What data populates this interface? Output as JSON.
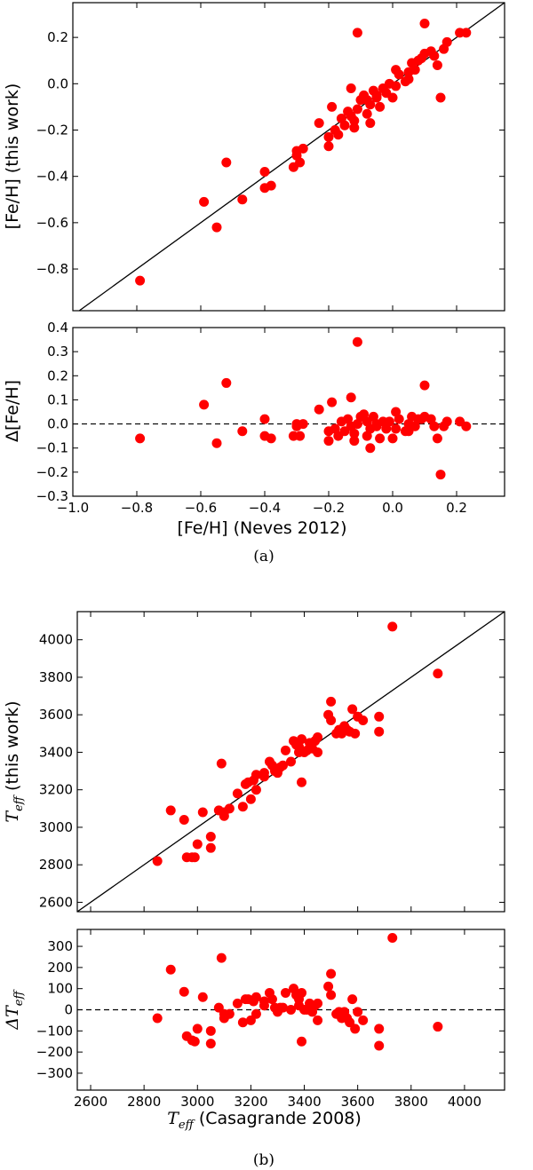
{
  "chart_data": [
    {
      "type": "scatter",
      "panel": "a-top",
      "xlim": [
        -1.0,
        0.35
      ],
      "ylim": [
        -0.98,
        0.35
      ],
      "yticks": [
        0.2,
        0.0,
        -0.2,
        -0.4,
        -0.6,
        -0.8
      ],
      "ytick_labels": [
        "0.2",
        "0.0",
        "−0.2",
        "−0.4",
        "−0.6",
        "−0.8"
      ],
      "ylabel": "[Fe/H] (this work)",
      "reference_line": "identity",
      "marker_color": "#ff0000",
      "x": [
        -0.79,
        -0.59,
        -0.55,
        -0.52,
        -0.47,
        -0.4,
        -0.4,
        -0.38,
        -0.31,
        -0.3,
        -0.3,
        -0.29,
        -0.28,
        -0.23,
        -0.2,
        -0.2,
        -0.19,
        -0.18,
        -0.17,
        -0.16,
        -0.15,
        -0.14,
        -0.13,
        -0.13,
        -0.12,
        -0.12,
        -0.11,
        -0.11,
        -0.1,
        -0.09,
        -0.08,
        -0.08,
        -0.07,
        -0.07,
        -0.06,
        -0.05,
        -0.05,
        -0.04,
        -0.03,
        -0.02,
        -0.01,
        0.0,
        0.01,
        0.01,
        0.02,
        0.04,
        0.05,
        0.05,
        0.06,
        0.07,
        0.08,
        0.09,
        0.1,
        0.1,
        0.12,
        0.13,
        0.14,
        0.15,
        0.16,
        0.17,
        0.21,
        0.23
      ],
      "y": [
        -0.85,
        -0.51,
        -0.62,
        -0.34,
        -0.5,
        -0.38,
        -0.45,
        -0.44,
        -0.36,
        -0.29,
        -0.31,
        -0.34,
        -0.28,
        -0.17,
        -0.23,
        -0.27,
        -0.1,
        -0.2,
        -0.22,
        -0.15,
        -0.18,
        -0.12,
        -0.02,
        -0.14,
        -0.16,
        -0.19,
        0.22,
        -0.11,
        -0.07,
        -0.05,
        -0.07,
        -0.13,
        -0.17,
        -0.09,
        -0.03,
        -0.05,
        -0.06,
        -0.1,
        -0.02,
        -0.04,
        0.0,
        -0.06,
        0.06,
        -0.01,
        0.04,
        0.01,
        0.02,
        0.05,
        0.09,
        0.06,
        0.1,
        0.11,
        0.26,
        0.13,
        0.14,
        0.12,
        0.08,
        -0.06,
        0.15,
        0.18,
        0.22,
        0.22
      ]
    },
    {
      "type": "scatter",
      "panel": "a-bottom",
      "xlim": [
        -1.0,
        0.35
      ],
      "ylim": [
        -0.3,
        0.4
      ],
      "xticks": [
        -1.0,
        -0.8,
        -0.6,
        -0.4,
        -0.2,
        0.0,
        0.2
      ],
      "xtick_labels": [
        "−1.0",
        "−0.8",
        "−0.6",
        "−0.4",
        "−0.2",
        "0.0",
        "0.2"
      ],
      "yticks": [
        0.4,
        0.3,
        0.2,
        0.1,
        0.0,
        -0.1,
        -0.2,
        -0.3
      ],
      "ytick_labels": [
        "0.4",
        "0.3",
        "0.2",
        "0.1",
        "0.0",
        "−0.1",
        "−0.2",
        "−0.3"
      ],
      "xlabel": "[Fe/H] (Neves 2012)",
      "ylabel": "Δ[Fe/H]",
      "reference_line": "zero",
      "marker_color": "#ff0000",
      "x": [
        -0.79,
        -0.59,
        -0.55,
        -0.52,
        -0.47,
        -0.4,
        -0.4,
        -0.38,
        -0.31,
        -0.3,
        -0.3,
        -0.29,
        -0.28,
        -0.23,
        -0.2,
        -0.2,
        -0.19,
        -0.18,
        -0.17,
        -0.16,
        -0.15,
        -0.14,
        -0.13,
        -0.13,
        -0.12,
        -0.12,
        -0.11,
        -0.11,
        -0.1,
        -0.09,
        -0.08,
        -0.08,
        -0.07,
        -0.07,
        -0.06,
        -0.05,
        -0.05,
        -0.04,
        -0.03,
        -0.02,
        -0.01,
        0.0,
        0.01,
        0.01,
        0.02,
        0.04,
        0.05,
        0.05,
        0.06,
        0.07,
        0.08,
        0.09,
        0.1,
        0.1,
        0.12,
        0.13,
        0.14,
        0.15,
        0.16,
        0.17,
        0.21,
        0.23
      ],
      "y": [
        -0.06,
        0.08,
        -0.08,
        0.17,
        -0.03,
        0.02,
        -0.05,
        -0.06,
        -0.05,
        0.0,
        -0.01,
        -0.05,
        0.0,
        0.06,
        -0.03,
        -0.07,
        0.09,
        -0.02,
        -0.05,
        0.01,
        -0.03,
        0.02,
        0.11,
        -0.01,
        -0.04,
        -0.07,
        0.34,
        0.0,
        0.03,
        0.04,
        0.01,
        -0.05,
        -0.1,
        -0.02,
        0.03,
        0.0,
        -0.01,
        -0.06,
        0.01,
        -0.02,
        0.01,
        -0.06,
        0.05,
        -0.02,
        0.02,
        -0.03,
        -0.03,
        0.0,
        0.03,
        -0.01,
        0.02,
        0.02,
        0.16,
        0.03,
        0.02,
        -0.01,
        -0.06,
        -0.21,
        -0.01,
        0.01,
        0.01,
        -0.01
      ]
    },
    {
      "type": "scatter",
      "panel": "b-top",
      "xlim": [
        2550,
        4150
      ],
      "ylim": [
        2550,
        4150
      ],
      "yticks": [
        4000,
        3800,
        3600,
        3400,
        3200,
        3000,
        2800,
        2600
      ],
      "ytick_labels": [
        "4000",
        "3800",
        "3600",
        "3400",
        "3200",
        "3000",
        "2800",
        "2600"
      ],
      "ylabel_main": "T",
      "ylabel_sub": "eff",
      "ylabel_rest": " (this work)",
      "reference_line": "identity",
      "marker_color": "#ff0000",
      "x": [
        2850,
        2900,
        2950,
        2960,
        2980,
        2990,
        3000,
        3020,
        3050,
        3050,
        3080,
        3090,
        3100,
        3100,
        3120,
        3150,
        3170,
        3180,
        3190,
        3200,
        3210,
        3220,
        3220,
        3250,
        3250,
        3270,
        3280,
        3290,
        3300,
        3310,
        3320,
        3330,
        3350,
        3360,
        3370,
        3380,
        3380,
        3390,
        3390,
        3400,
        3410,
        3420,
        3430,
        3440,
        3450,
        3450,
        3490,
        3500,
        3500,
        3520,
        3530,
        3540,
        3550,
        3560,
        3570,
        3580,
        3590,
        3600,
        3620,
        3680,
        3680,
        3730,
        3900
      ],
      "y": [
        2820,
        3090,
        3040,
        2840,
        2840,
        2840,
        2910,
        3080,
        2950,
        2890,
        3090,
        3340,
        3060,
        3080,
        3100,
        3180,
        3110,
        3230,
        3240,
        3150,
        3250,
        3200,
        3280,
        3290,
        3270,
        3350,
        3330,
        3300,
        3290,
        3320,
        3330,
        3410,
        3350,
        3460,
        3440,
        3400,
        3430,
        3470,
        3240,
        3400,
        3410,
        3450,
        3420,
        3460,
        3480,
        3400,
        3600,
        3670,
        3570,
        3500,
        3520,
        3500,
        3540,
        3520,
        3510,
        3630,
        3500,
        3590,
        3570,
        3590,
        3510,
        4070,
        3820
      ]
    },
    {
      "type": "scatter",
      "panel": "b-bottom",
      "xlim": [
        2550,
        4150
      ],
      "ylim": [
        -380,
        380
      ],
      "xticks": [
        2600,
        2800,
        3000,
        3200,
        3400,
        3600,
        3800,
        4000
      ],
      "xtick_labels": [
        "2600",
        "2800",
        "3000",
        "3200",
        "3400",
        "3600",
        "3800",
        "4000"
      ],
      "yticks": [
        300,
        200,
        100,
        0,
        -100,
        -200,
        -300
      ],
      "ytick_labels": [
        "300",
        "200",
        "100",
        "0",
        "−100",
        "−200",
        "−300"
      ],
      "xlabel_main": "T",
      "xlabel_sub": "eff",
      "xlabel_rest": " (Casagrande 2008)",
      "ylabel_main": "ΔT",
      "ylabel_sub": "eff",
      "reference_line": "zero",
      "marker_color": "#ff0000",
      "x": [
        2850,
        2900,
        2950,
        2960,
        2980,
        2990,
        3000,
        3020,
        3050,
        3050,
        3080,
        3090,
        3100,
        3100,
        3120,
        3150,
        3170,
        3180,
        3190,
        3200,
        3210,
        3220,
        3220,
        3250,
        3250,
        3270,
        3280,
        3290,
        3300,
        3310,
        3320,
        3330,
        3350,
        3360,
        3370,
        3380,
        3380,
        3390,
        3390,
        3400,
        3410,
        3420,
        3430,
        3440,
        3450,
        3450,
        3490,
        3500,
        3500,
        3520,
        3530,
        3540,
        3550,
        3560,
        3570,
        3580,
        3590,
        3600,
        3620,
        3680,
        3680,
        3730,
        3900
      ],
      "y": [
        -40,
        190,
        85,
        -125,
        -145,
        -150,
        -90,
        60,
        -100,
        -160,
        10,
        245,
        -40,
        -20,
        -20,
        30,
        -60,
        50,
        50,
        -50,
        40,
        -20,
        60,
        40,
        20,
        80,
        50,
        10,
        -10,
        10,
        10,
        80,
        0,
        100,
        70,
        20,
        50,
        80,
        -150,
        0,
        0,
        30,
        -10,
        20,
        30,
        -50,
        110,
        170,
        70,
        -20,
        -10,
        -40,
        -10,
        -40,
        -60,
        50,
        -90,
        -10,
        -50,
        -90,
        -170,
        340,
        -80
      ]
    }
  ],
  "captions": {
    "a": "(a)",
    "b": "(b)"
  }
}
